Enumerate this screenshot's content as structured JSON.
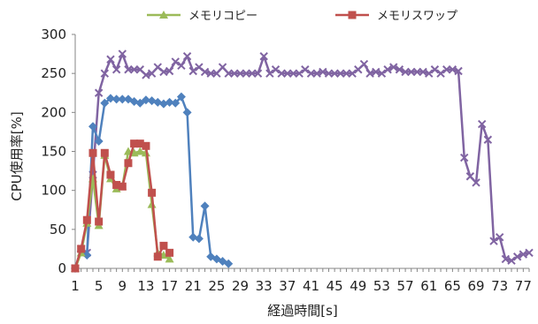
{
  "chart_data": {
    "type": "line",
    "title": "",
    "xlabel": "経過時間[s]",
    "ylabel": "CPU使用率[%]",
    "ylim": [
      0,
      300
    ],
    "yticks": [
      0,
      50,
      100,
      150,
      200,
      250,
      300
    ],
    "xlim": [
      1,
      78
    ],
    "xticks": [
      1,
      5,
      9,
      13,
      17,
      21,
      25,
      29,
      33,
      37,
      41,
      45,
      49,
      53,
      57,
      61,
      65,
      69,
      73,
      77
    ],
    "grid": false,
    "legend_position": "top",
    "legend": [
      "メモリコピー",
      "メモリスワップ"
    ],
    "series": [
      {
        "name": "メモリコピー",
        "color": "#9bbb59",
        "marker": "triangle",
        "x": [
          1,
          2,
          3,
          4,
          5,
          6,
          7,
          8,
          9,
          10,
          11,
          12,
          13,
          14,
          15,
          16,
          17
        ],
        "values": [
          0,
          20,
          58,
          115,
          55,
          145,
          115,
          102,
          105,
          150,
          148,
          150,
          148,
          82,
          20,
          17,
          12
        ]
      },
      {
        "name": "メモリスワップ",
        "color": "#c0504d",
        "marker": "square",
        "x": [
          1,
          2,
          3,
          4,
          5,
          6,
          7,
          8,
          9,
          10,
          11,
          12,
          13,
          14,
          15,
          16,
          17
        ],
        "values": [
          0,
          25,
          62,
          148,
          60,
          148,
          120,
          107,
          105,
          135,
          160,
          160,
          157,
          97,
          15,
          29,
          20
        ]
      },
      {
        "color": "#4f81bd",
        "marker": "diamond",
        "x": [
          1,
          2,
          3,
          4,
          5,
          6,
          7,
          8,
          9,
          10,
          11,
          12,
          13,
          14,
          15,
          16,
          17,
          18,
          19,
          20,
          21,
          22,
          23,
          24,
          25,
          26,
          27
        ],
        "values": [
          0,
          22,
          17,
          182,
          163,
          212,
          218,
          217,
          217,
          217,
          214,
          212,
          216,
          215,
          213,
          211,
          213,
          212,
          220,
          200,
          40,
          38,
          80,
          15,
          12,
          9,
          6
        ]
      },
      {
        "color": "#8064a2",
        "marker": "x",
        "x": [
          1,
          2,
          3,
          4,
          5,
          6,
          7,
          8,
          9,
          10,
          11,
          12,
          13,
          14,
          15,
          16,
          17,
          18,
          19,
          20,
          21,
          22,
          23,
          24,
          25,
          26,
          27,
          28,
          29,
          30,
          31,
          32,
          33,
          34,
          35,
          36,
          37,
          38,
          39,
          40,
          41,
          42,
          43,
          44,
          45,
          46,
          47,
          48,
          49,
          50,
          51,
          52,
          53,
          54,
          55,
          56,
          57,
          58,
          59,
          60,
          61,
          62,
          63,
          64,
          65,
          66,
          67,
          68,
          69,
          70,
          71,
          72,
          73,
          74,
          75,
          76,
          77,
          78
        ],
        "values": [
          0,
          25,
          20,
          120,
          225,
          250,
          268,
          255,
          275,
          255,
          255,
          255,
          248,
          250,
          258,
          252,
          253,
          265,
          260,
          272,
          253,
          258,
          252,
          250,
          250,
          258,
          250,
          250,
          250,
          250,
          250,
          250,
          272,
          250,
          255,
          250,
          250,
          250,
          250,
          255,
          250,
          250,
          252,
          250,
          250,
          250,
          250,
          250,
          255,
          262,
          250,
          252,
          250,
          255,
          258,
          255,
          252,
          252,
          252,
          252,
          250,
          255,
          250,
          255,
          255,
          253,
          142,
          118,
          110,
          185,
          165,
          35,
          40,
          12,
          10,
          15,
          18,
          20
        ]
      }
    ]
  }
}
